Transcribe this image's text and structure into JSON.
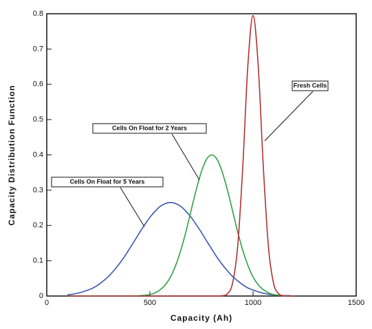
{
  "chart_data": {
    "type": "line",
    "xlabel": "Capacity (Ah)",
    "ylabel": "Capacity Distribution Function",
    "x": [
      100,
      125,
      150,
      175,
      200,
      225,
      250,
      275,
      300,
      325,
      350,
      375,
      400,
      425,
      450,
      475,
      500,
      525,
      550,
      575,
      600,
      625,
      650,
      675,
      700,
      725,
      750,
      775,
      800,
      825,
      850,
      875,
      900,
      925,
      950,
      975,
      1000,
      1025,
      1050,
      1075,
      1100,
      1125,
      1150,
      1175,
      1200
    ],
    "series": [
      {
        "name": "Cells On Float for 5 Years",
        "color": "#3a56a8",
        "values": [
          0.0035,
          0.005,
          0.008,
          0.012,
          0.017,
          0.023,
          0.032,
          0.043,
          0.056,
          0.072,
          0.09,
          0.11,
          0.133,
          0.156,
          0.18,
          0.202,
          0.223,
          0.24,
          0.254,
          0.262,
          0.265,
          0.262,
          0.254,
          0.24,
          0.223,
          0.202,
          0.18,
          0.156,
          0.133,
          0.11,
          0.09,
          0.072,
          0.056,
          0.043,
          0.032,
          0.023,
          0.017,
          0.012,
          0.008,
          0.005,
          0.0035,
          0.002,
          0.001,
          0.001,
          0
        ]
      },
      {
        "name": "Cells On Float for 2 Years",
        "color": "#2ea043",
        "values": [
          0,
          0,
          0,
          0,
          0,
          0,
          0,
          0,
          0,
          0,
          0,
          0,
          0,
          0,
          0.001,
          0.002,
          0.004,
          0.009,
          0.018,
          0.032,
          0.054,
          0.087,
          0.13,
          0.183,
          0.243,
          0.302,
          0.353,
          0.388,
          0.4,
          0.388,
          0.353,
          0.302,
          0.243,
          0.183,
          0.13,
          0.087,
          0.054,
          0.032,
          0.018,
          0.009,
          0.004,
          0.002,
          0.001,
          0,
          0
        ]
      },
      {
        "name": "Fresh Cells",
        "color": "#b03030",
        "values": [
          0,
          0,
          0,
          0,
          0,
          0,
          0,
          0,
          0,
          0,
          0,
          0,
          0,
          0,
          0,
          0,
          0,
          0,
          0,
          0,
          0,
          0,
          0,
          0,
          0,
          0,
          0,
          0,
          0,
          0,
          0.001,
          0.006,
          0.035,
          0.137,
          0.364,
          0.654,
          0.795,
          0.654,
          0.364,
          0.137,
          0.035,
          0.006,
          0.001,
          0,
          0
        ]
      }
    ],
    "xlim": [
      0,
      1500
    ],
    "xticks": [
      0,
      500,
      1000,
      1500
    ],
    "ylim": [
      0,
      0.8
    ],
    "yticks": [
      0,
      0.1,
      0.2,
      0.3,
      0.4,
      0.5,
      0.6,
      0.7,
      0.8
    ]
  }
}
